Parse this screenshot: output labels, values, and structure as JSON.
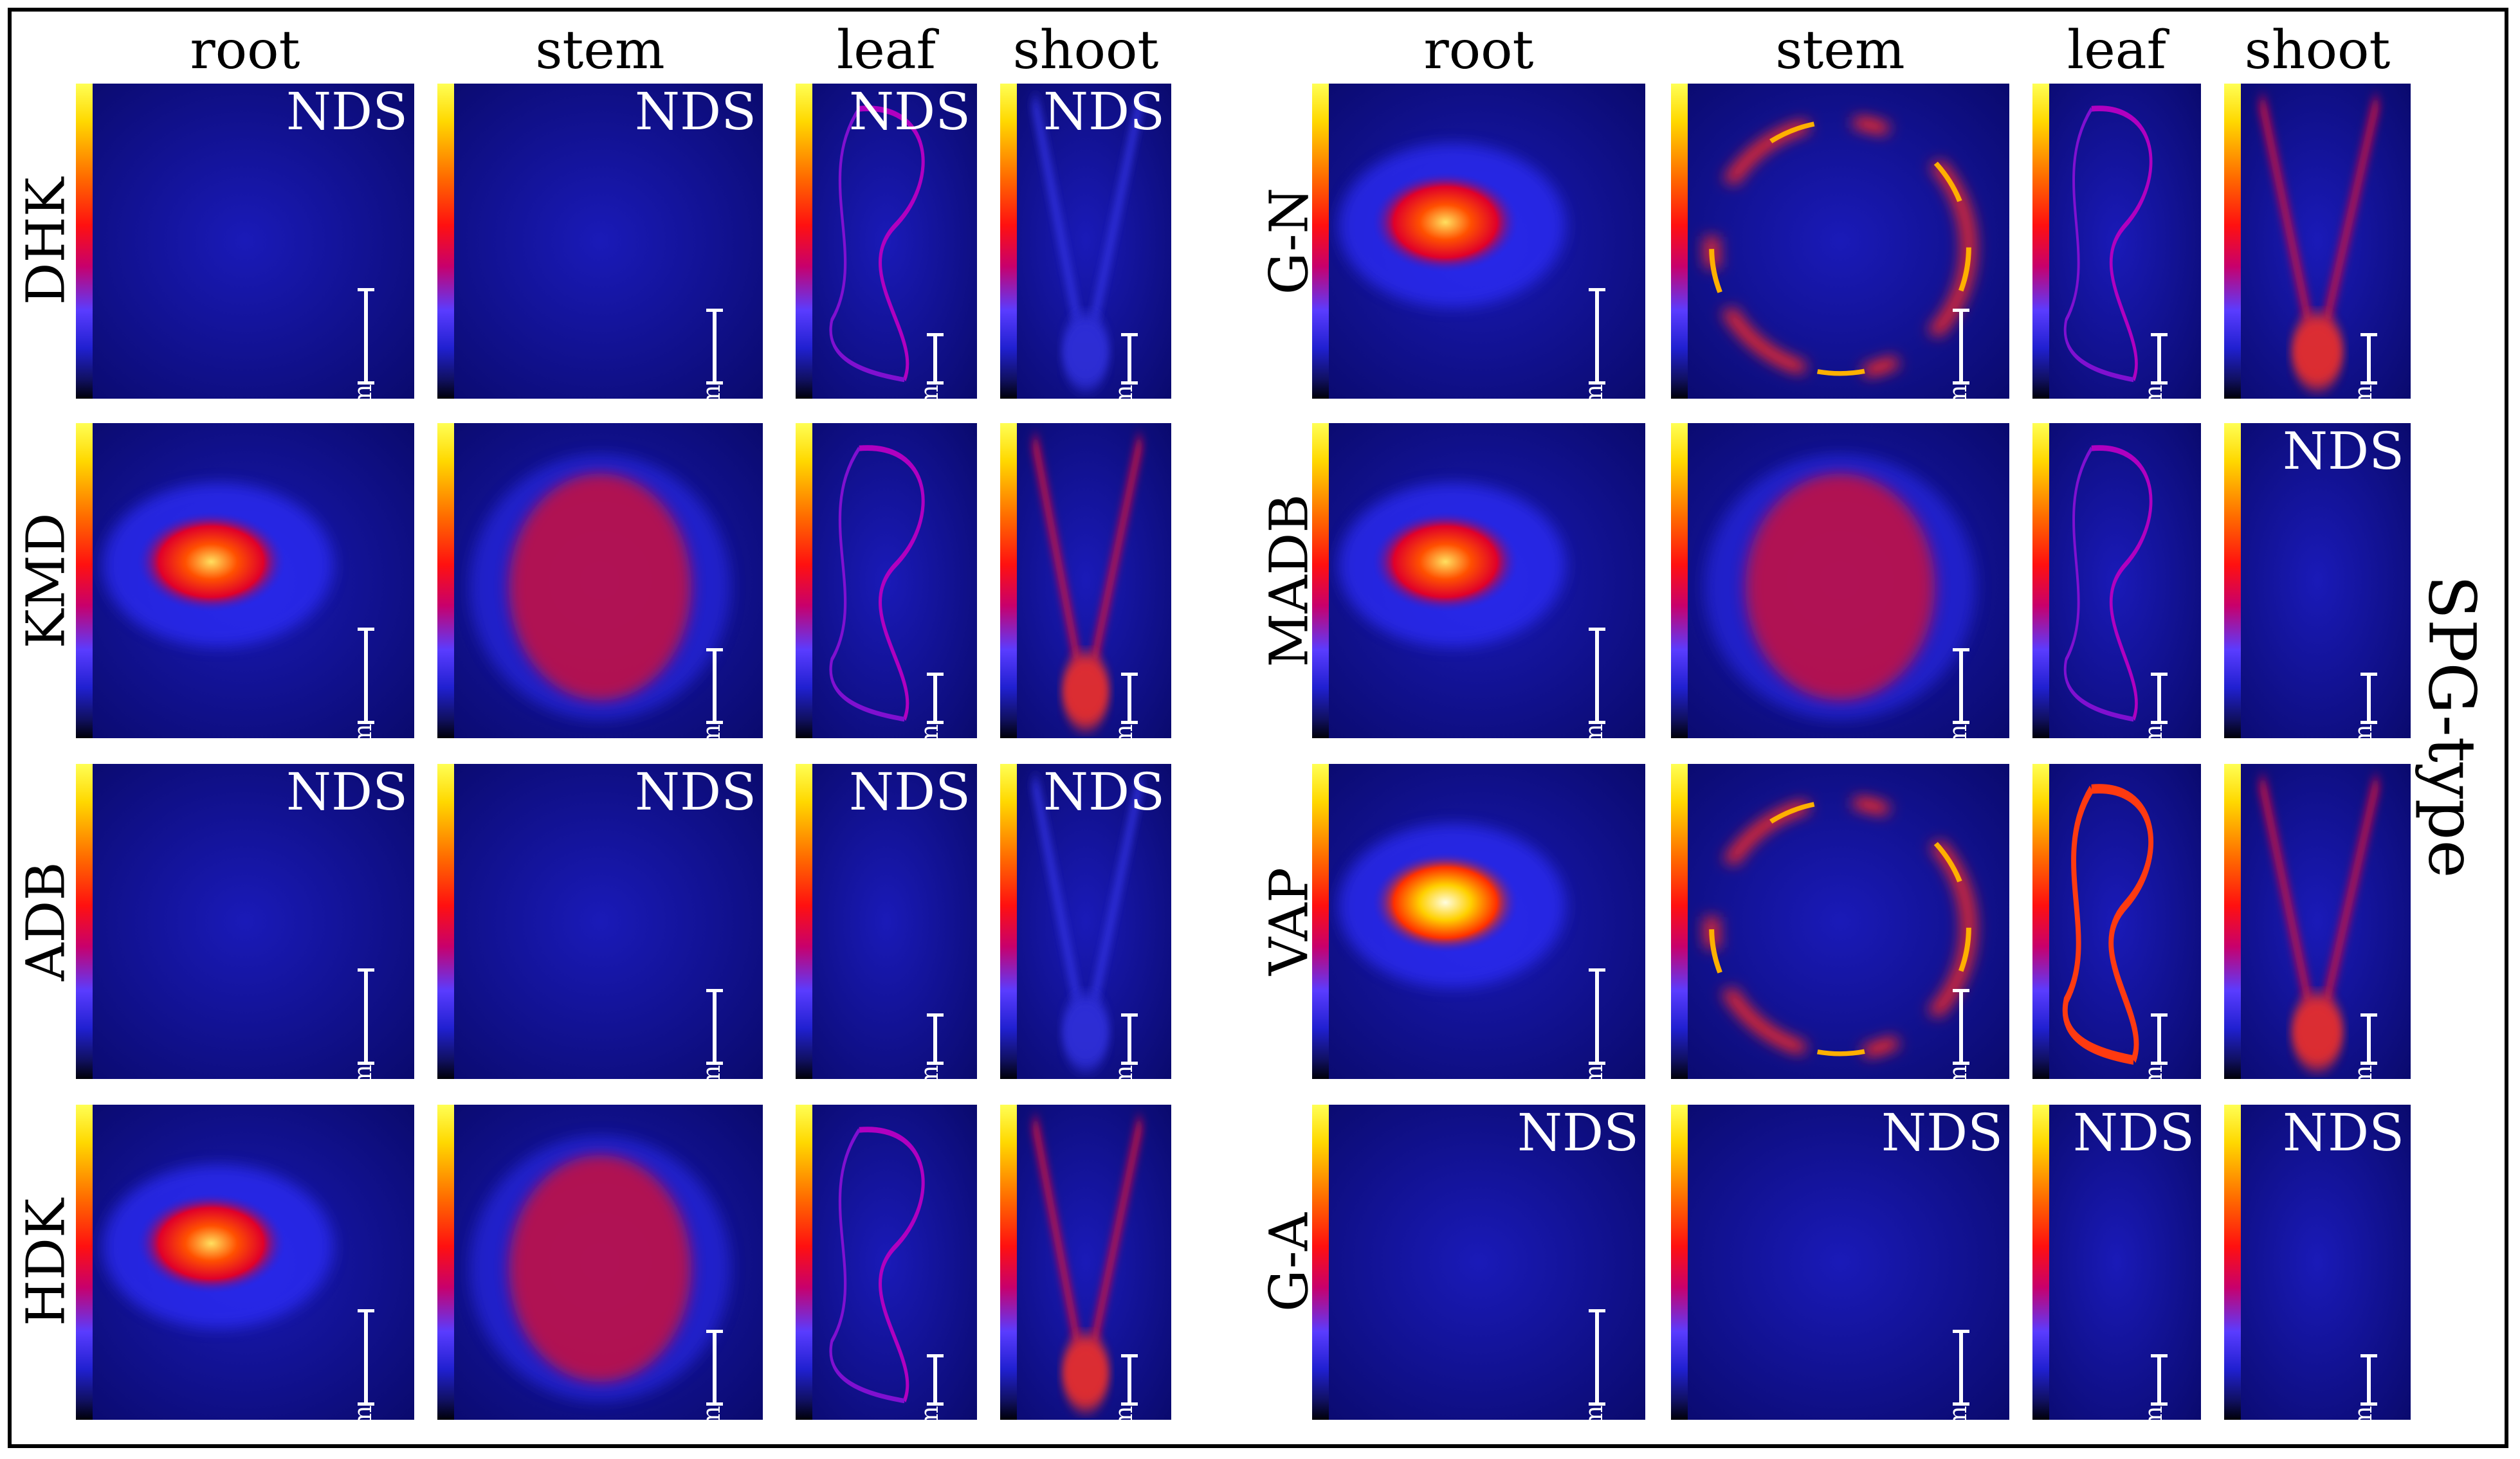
{
  "right_side_label": "SPG-type",
  "left_block": {
    "columns": [
      "root",
      "stem",
      "leaf",
      "shoot"
    ],
    "rows": [
      {
        "label": "DHK",
        "panels": [
          {
            "max": "1800",
            "min": "0",
            "nds": "NDS",
            "scale": "0.3 mm"
          },
          {
            "max": "800",
            "min": "0",
            "nds": "NDS",
            "scale": "1 mm"
          },
          {
            "max": "1400",
            "min": "0",
            "nds": "NDS",
            "scale": "2 mm"
          },
          {
            "max": "1100",
            "min": "0",
            "nds": "NDS",
            "scale": "3 mm"
          }
        ]
      },
      {
        "label": "KMD",
        "panels": [
          {
            "max": "2200",
            "min": "0",
            "nds": "",
            "scale": "0.3 mm"
          },
          {
            "max": "2800",
            "min": "0",
            "nds": "",
            "scale": "1 mm"
          },
          {
            "max": "1500",
            "min": "0",
            "nds": "",
            "scale": "2 mm"
          },
          {
            "max": "1800",
            "min": "0",
            "nds": "",
            "scale": "3 mm"
          }
        ]
      },
      {
        "label": "ADB",
        "panels": [
          {
            "max": "1200",
            "min": "0",
            "nds": "NDS",
            "scale": "0.3 mm"
          },
          {
            "max": "1800",
            "min": "0",
            "nds": "NDS",
            "scale": "1 mm"
          },
          {
            "max": "2800",
            "min": "0",
            "nds": "NDS",
            "scale": "2 mm"
          },
          {
            "max": "700",
            "min": "0",
            "nds": "NDS",
            "scale": "3 mm"
          }
        ]
      },
      {
        "label": "HDK",
        "panels": [
          {
            "max": "2200",
            "min": "0",
            "nds": "",
            "scale": "0.3 mm"
          },
          {
            "max": "2000",
            "min": "0",
            "nds": "",
            "scale": "1 mm"
          },
          {
            "max": "1300",
            "min": "0",
            "nds": "",
            "scale": "2 mm"
          },
          {
            "max": "3000",
            "min": "0",
            "nds": "",
            "scale": "3 mm"
          }
        ]
      }
    ]
  },
  "right_block": {
    "columns": [
      "root",
      "stem",
      "leaf",
      "shoot"
    ],
    "rows": [
      {
        "label": "G-N",
        "panels": [
          {
            "max": "4000",
            "min": "0",
            "nds": "",
            "scale": "0.3 mm"
          },
          {
            "max": "5000",
            "min": "0",
            "nds": "",
            "scale": "1 mm"
          },
          {
            "max": "2200",
            "min": "0",
            "nds": "",
            "scale": "2 mm"
          },
          {
            "max": "3500",
            "min": "0",
            "nds": "",
            "scale": "3 mm"
          }
        ]
      },
      {
        "label": "MADB",
        "panels": [
          {
            "max": "6000",
            "min": "0",
            "nds": "",
            "scale": "0.3 mm"
          },
          {
            "max": "3200",
            "min": "0",
            "nds": "",
            "scale": "1 mm"
          },
          {
            "max": "3200",
            "min": "0",
            "nds": "",
            "scale": "2 mm"
          },
          {
            "max": "1500",
            "min": "0",
            "nds": "NDS",
            "scale": "3 mm"
          }
        ]
      },
      {
        "label": "VAP",
        "panels": [
          {
            "max": "7000",
            "min": "0",
            "nds": "",
            "scale": "0.3 mm"
          },
          {
            "max": "5500",
            "min": "0",
            "nds": "",
            "scale": "1 mm"
          },
          {
            "max": "6500",
            "min": "0",
            "nds": "",
            "scale": "2 mm"
          },
          {
            "max": "7000",
            "min": "0",
            "nds": "",
            "scale": "3 mm"
          }
        ]
      },
      {
        "label": "G-A",
        "panels": [
          {
            "max": "2000",
            "min": "0",
            "nds": "NDS",
            "scale": "0.3 mm"
          },
          {
            "max": "1750",
            "min": "0",
            "nds": "NDS",
            "scale": "1 mm"
          },
          {
            "max": "1700",
            "min": "0",
            "nds": "NDS",
            "scale": "2 mm"
          },
          {
            "max": "1400",
            "min": "0",
            "nds": "NDS",
            "scale": "3 mm"
          }
        ]
      }
    ]
  }
}
